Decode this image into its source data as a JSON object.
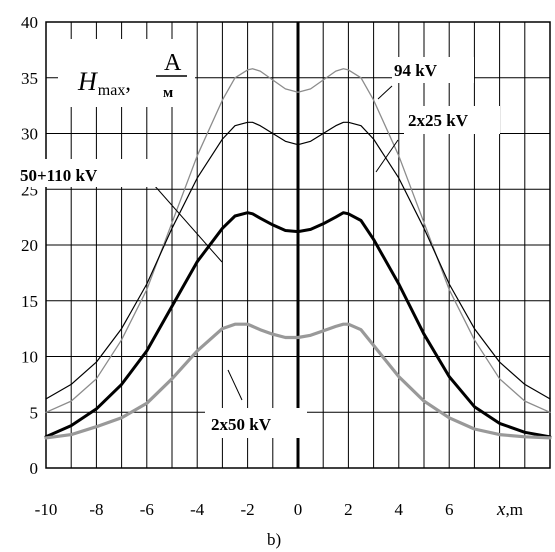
{
  "chart_data": {
    "type": "line",
    "caption": "b)",
    "ylabel": {
      "symbol": "H",
      "subscript": "max",
      "unit_num": "A",
      "unit_den": "м"
    },
    "xlabel": {
      "symbol": "x",
      "unit": "m"
    },
    "xlim": [
      -10,
      10
    ],
    "ylim": [
      0,
      40
    ],
    "xticks": [
      -10,
      -8,
      -6,
      -4,
      -2,
      0,
      2,
      4,
      6
    ],
    "yticks": [
      0,
      5,
      10,
      15,
      20,
      25,
      30,
      35,
      40
    ],
    "grid": true,
    "x": [
      -10,
      -9,
      -8,
      -7,
      -6,
      -5,
      -4,
      -3,
      -2.5,
      -2,
      -1.8,
      -1.5,
      -1,
      -0.5,
      0,
      0.5,
      1,
      1.5,
      1.8,
      2,
      2.5,
      3,
      4,
      5,
      6,
      7,
      8,
      9,
      10
    ],
    "series": [
      {
        "name": "94 kV",
        "color": "#8c8c8c",
        "width": 1.3,
        "values": [
          5,
          6,
          8,
          11.5,
          16,
          22,
          28,
          33,
          35,
          35.7,
          35.8,
          35.6,
          34.8,
          34,
          33.7,
          34,
          34.8,
          35.6,
          35.8,
          35.7,
          35,
          33,
          28,
          22,
          16,
          11.5,
          8,
          6,
          5
        ]
      },
      {
        "name": "2x25 kV",
        "color": "#000000",
        "width": 1.2,
        "values": [
          6.2,
          7.5,
          9.5,
          12.5,
          16.5,
          21.5,
          26,
          29.5,
          30.7,
          31,
          31,
          30.7,
          30,
          29.3,
          29,
          29.3,
          30,
          30.7,
          31,
          31,
          30.7,
          29.5,
          26,
          21.5,
          16.5,
          12.5,
          9.5,
          7.5,
          6.2
        ]
      },
      {
        "name": "50+110 kV",
        "color": "#000000",
        "width": 3,
        "values": [
          2.8,
          3.8,
          5.3,
          7.5,
          10.5,
          14.5,
          18.5,
          21.5,
          22.6,
          22.9,
          22.8,
          22.4,
          21.8,
          21.3,
          21.2,
          21.4,
          21.9,
          22.5,
          22.9,
          22.8,
          22.2,
          20.5,
          16.5,
          12,
          8.2,
          5.5,
          4,
          3.2,
          2.8
        ]
      },
      {
        "name": "2x50 kV",
        "color": "#999999",
        "width": 3.2,
        "values": [
          2.7,
          3,
          3.7,
          4.5,
          5.8,
          8,
          10.5,
          12.5,
          12.9,
          12.9,
          12.7,
          12.4,
          12,
          11.7,
          11.7,
          11.9,
          12.3,
          12.7,
          12.9,
          12.9,
          12.4,
          11,
          8.2,
          6,
          4.5,
          3.5,
          3,
          2.8,
          2.7
        ]
      }
    ]
  }
}
